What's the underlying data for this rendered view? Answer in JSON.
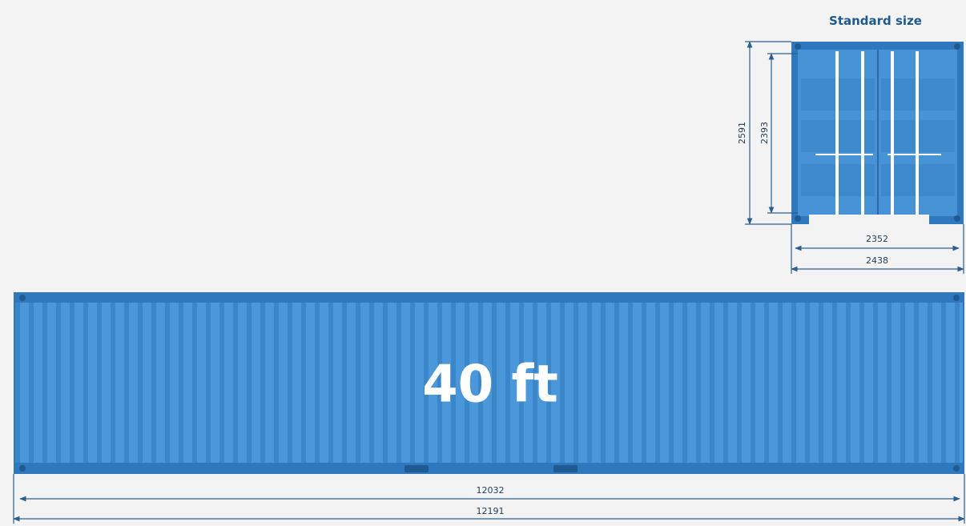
{
  "header": {
    "title": "Standard size"
  },
  "front_view": {
    "height_outer": 2591,
    "height_inner": 2393,
    "width_inner": 2352,
    "width_outer": 2438
  },
  "side_view": {
    "label": "40 ft",
    "length_inner": 12032,
    "length_outer": 12191
  }
}
